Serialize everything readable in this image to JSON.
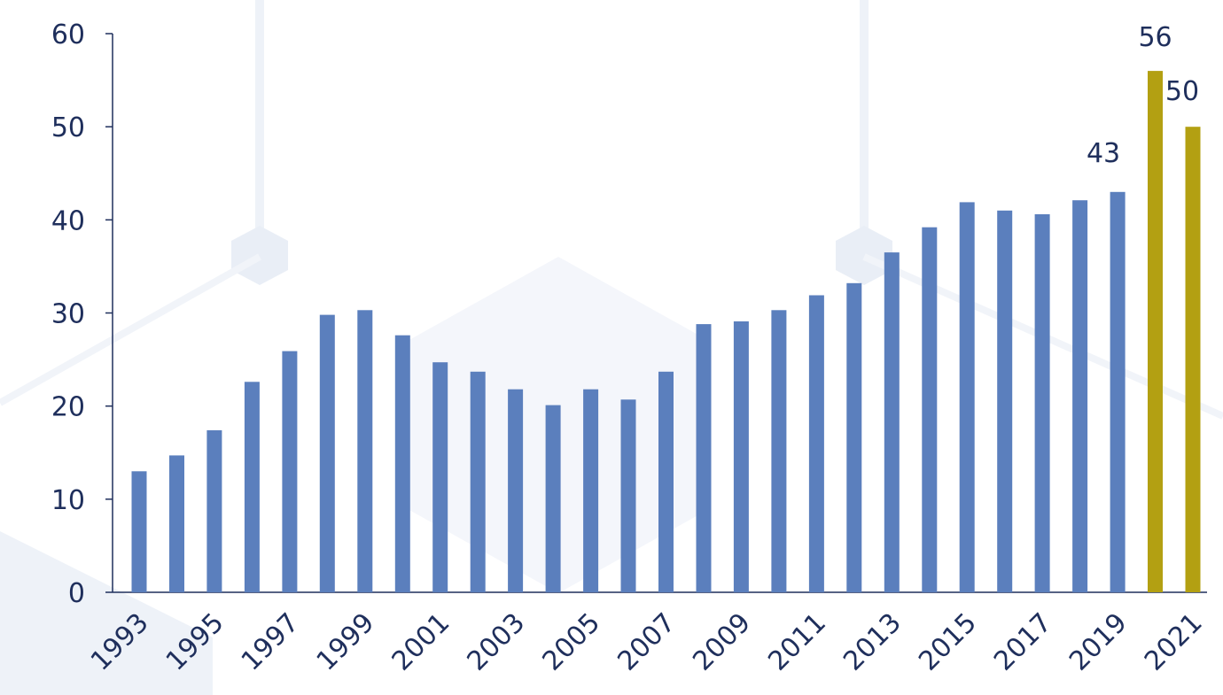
{
  "chart_data": {
    "type": "bar",
    "title": "",
    "xlabel": "",
    "ylabel": "",
    "ylim": [
      0,
      60
    ],
    "yticks": [
      0,
      10,
      20,
      30,
      40,
      50,
      60
    ],
    "grid": false,
    "categories": [
      "1993",
      "1994",
      "1995",
      "1996",
      "1997",
      "1998",
      "1999",
      "2000",
      "2001",
      "2002",
      "2003",
      "2004",
      "2005",
      "2006",
      "2007",
      "2008",
      "2009",
      "2010",
      "2011",
      "2012",
      "2013",
      "2014",
      "2015",
      "2016",
      "2017",
      "2018",
      "2019",
      "2020",
      "2021"
    ],
    "x_tick_labels": [
      "1993",
      "1995",
      "1997",
      "1999",
      "2001",
      "2003",
      "2005",
      "2007",
      "2009",
      "2011",
      "2013",
      "2015",
      "2017",
      "2019",
      "2021"
    ],
    "values": [
      13,
      14.7,
      17.4,
      22.6,
      25.9,
      29.8,
      30.3,
      27.6,
      24.7,
      23.7,
      21.8,
      20.1,
      21.8,
      20.7,
      23.7,
      28.8,
      29.1,
      30.3,
      31.9,
      33.2,
      36.5,
      39.2,
      41.9,
      41.0,
      40.6,
      42.1,
      43,
      56,
      50
    ],
    "data_labels": {
      "2019": "43",
      "2020": "56",
      "2021": "50"
    },
    "colors": {
      "default_bar": "#5b7fbd",
      "highlight_bar": "#b3a012",
      "axis": "#1f2f5c",
      "text": "#1f2f5c",
      "background_motif": "#eef2f8"
    },
    "highlight_categories": [
      "2020",
      "2021"
    ]
  }
}
